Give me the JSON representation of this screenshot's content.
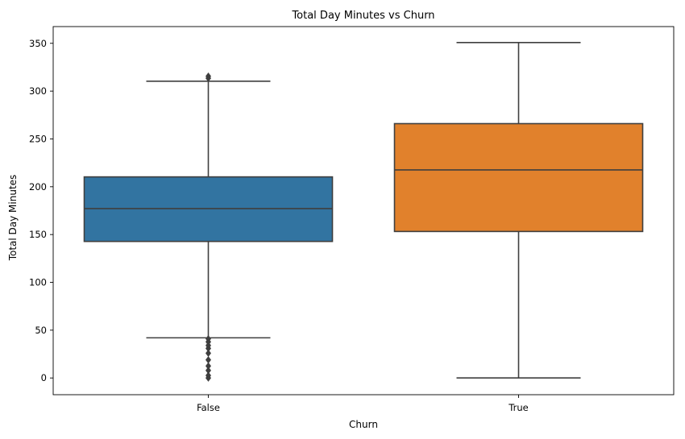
{
  "chart_data": {
    "type": "box",
    "title": "Total Day Minutes vs Churn",
    "xlabel": "Churn",
    "ylabel": "Total Day Minutes",
    "ylim": [
      -17.5,
      367.5
    ],
    "yticks": [
      0,
      50,
      100,
      150,
      200,
      250,
      300,
      350
    ],
    "categories": [
      "False",
      "True"
    ],
    "boxes": [
      {
        "category": "False",
        "color": "#3274a1",
        "whisker_low": 42,
        "q1": 142.8,
        "median": 177.2,
        "q3": 210.3,
        "whisker_high": 310.4,
        "outliers": [
          315.6,
          313.5,
          0,
          2.6,
          7.9,
          12.5,
          18.9,
          25.9,
          30.9,
          34,
          37.8,
          40.9
        ]
      },
      {
        "category": "True",
        "color": "#e1812c",
        "whisker_low": 0,
        "q1": 153.2,
        "median": 217.6,
        "q3": 266,
        "whisker_high": 350.8,
        "outliers": []
      }
    ],
    "grid": false,
    "legend": "none"
  }
}
